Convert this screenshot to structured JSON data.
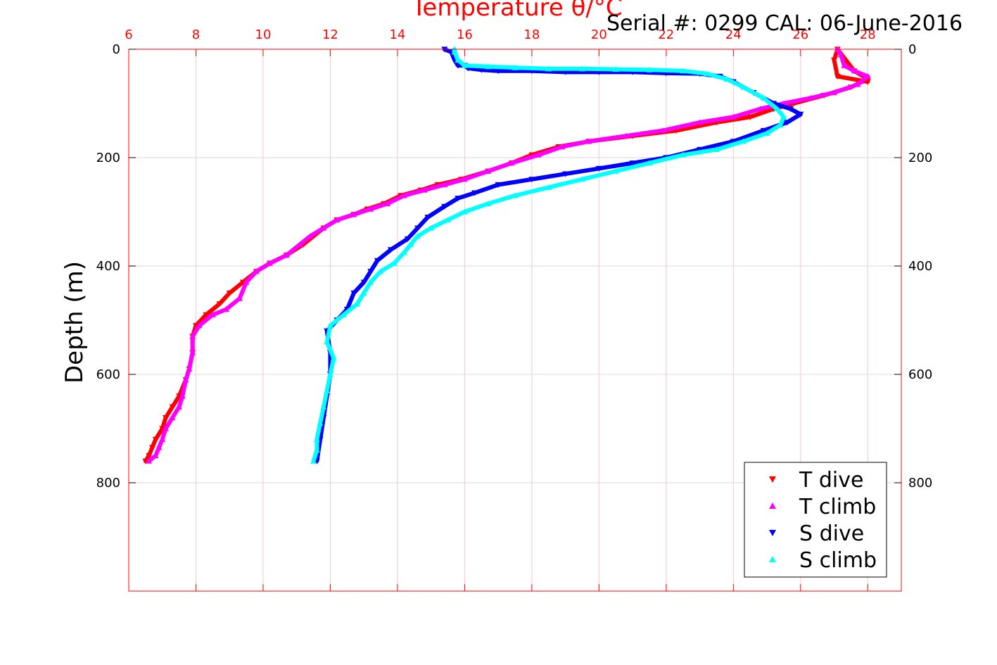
{
  "chart_data": {
    "type": "scatter",
    "title": "Temperature θ/°C",
    "annotation": "Serial #: 0299 CAL: 06-June-2016",
    "ylabel": "Depth (m)",
    "xlim": [
      6,
      29
    ],
    "ylim": [
      0,
      1000
    ],
    "y_reversed": true,
    "x_ticks": [
      "6",
      "8",
      "10",
      "12",
      "14",
      "16",
      "18",
      "20",
      "22",
      "24",
      "26",
      "28"
    ],
    "x_tick_values": [
      6,
      8,
      10,
      12,
      14,
      16,
      18,
      20,
      22,
      24,
      26,
      28
    ],
    "y_ticks": [
      "0",
      "200",
      "400",
      "600",
      "800"
    ],
    "y_tick_values": [
      0,
      200,
      400,
      600,
      800
    ],
    "grid": true,
    "legend_position": "bottom-right",
    "axis_color": "#ff0000",
    "series": [
      {
        "name": "T dive",
        "color": "#ff0000",
        "marker": "triangle-down",
        "x": [
          28.0,
          27.1,
          27.0,
          27.1,
          27.6,
          28.0,
          27.5,
          26.7,
          25.8,
          25.2,
          24.5,
          23.5,
          22.3,
          21.0,
          19.7,
          18.8,
          18.0,
          17.4,
          16.7,
          15.9,
          15.2,
          14.7,
          14.1,
          13.6,
          13.1,
          12.7,
          12.2,
          11.8,
          11.5,
          11.2,
          10.7,
          10.2,
          9.8,
          9.4,
          9.0,
          8.7,
          8.3,
          8.0,
          7.9,
          7.9,
          7.8,
          7.7,
          7.5,
          7.3,
          7.1,
          7.0,
          6.8,
          6.7,
          6.6,
          6.5
        ],
        "y": [
          60,
          50,
          20,
          0,
          40,
          55,
          70,
          85,
          100,
          110,
          125,
          135,
          150,
          160,
          170,
          180,
          195,
          210,
          225,
          240,
          250,
          260,
          270,
          285,
          295,
          305,
          315,
          330,
          345,
          360,
          380,
          395,
          410,
          430,
          450,
          470,
          490,
          510,
          530,
          560,
          590,
          610,
          640,
          660,
          680,
          700,
          720,
          735,
          750,
          760
        ]
      },
      {
        "name": "T climb",
        "color": "#ff00ff",
        "marker": "triangle-up",
        "x": [
          27.1,
          27.2,
          27.3,
          27.6,
          28.0,
          27.7,
          27.0,
          26.3,
          25.5,
          24.8,
          24.0,
          23.0,
          21.9,
          20.8,
          19.7,
          18.9,
          18.2,
          17.4,
          16.7,
          16.0,
          15.4,
          14.8,
          14.2,
          13.7,
          13.2,
          12.7,
          12.2,
          11.8,
          11.4,
          11.1,
          10.7,
          10.2,
          9.8,
          9.5,
          9.3,
          8.9,
          8.5,
          8.1,
          7.9,
          7.9,
          7.8,
          7.7,
          7.6,
          7.5,
          7.3,
          7.1,
          7.0,
          6.9,
          6.8,
          6.6
        ],
        "y": [
          0,
          10,
          30,
          40,
          50,
          65,
          80,
          90,
          100,
          110,
          125,
          135,
          150,
          160,
          170,
          180,
          195,
          210,
          225,
          240,
          250,
          260,
          270,
          285,
          295,
          305,
          315,
          330,
          345,
          360,
          380,
          395,
          410,
          430,
          460,
          480,
          490,
          510,
          530,
          560,
          590,
          610,
          640,
          660,
          680,
          700,
          720,
          735,
          750,
          760
        ]
      },
      {
        "name": "S dive",
        "color": "#0000ff",
        "marker": "triangle-down",
        "x": [
          15.4,
          15.6,
          15.7,
          15.8,
          16.0,
          16.1,
          16.5,
          17.0,
          18.0,
          19.0,
          20.0,
          21.0,
          22.0,
          23.0,
          23.6,
          24.0,
          24.6,
          25.2,
          25.7,
          26.0,
          25.6,
          24.9,
          24.0,
          23.0,
          22.0,
          21.0,
          20.0,
          19.0,
          18.0,
          17.0,
          16.3,
          15.8,
          15.4,
          14.9,
          14.6,
          14.3,
          13.8,
          13.4,
          13.2,
          13.0,
          12.7,
          12.5,
          12.2,
          11.9,
          12.0,
          12.0,
          11.9,
          11.8,
          11.7,
          11.6
        ],
        "y": [
          0,
          5,
          20,
          30,
          30,
          35,
          38,
          40,
          40,
          42,
          42,
          42,
          44,
          45,
          50,
          60,
          80,
          100,
          110,
          120,
          135,
          150,
          170,
          185,
          200,
          210,
          220,
          230,
          240,
          250,
          265,
          275,
          290,
          310,
          330,
          350,
          370,
          390,
          410,
          430,
          450,
          480,
          500,
          520,
          560,
          600,
          640,
          680,
          720,
          760
        ]
      },
      {
        "name": "S climb",
        "color": "#00ffff",
        "marker": "triangle-up",
        "x": [
          15.7,
          15.7,
          15.8,
          16.0,
          16.7,
          17.5,
          18.5,
          19.5,
          20.5,
          21.5,
          22.5,
          23.2,
          23.8,
          24.3,
          24.9,
          25.3,
          25.5,
          25.4,
          25.0,
          24.3,
          23.5,
          22.5,
          21.5,
          20.5,
          19.5,
          18.5,
          17.5,
          16.7,
          16.0,
          15.5,
          15.0,
          14.6,
          14.4,
          14.2,
          13.9,
          13.5,
          13.2,
          13.0,
          12.8,
          12.4,
          12.0,
          11.9,
          12.1,
          12.0,
          11.9,
          11.8,
          11.7,
          11.6,
          11.6,
          11.5
        ],
        "y": [
          0,
          5,
          20,
          30,
          32,
          34,
          36,
          36,
          37,
          38,
          40,
          45,
          55,
          70,
          90,
          110,
          125,
          140,
          155,
          170,
          185,
          195,
          210,
          225,
          240,
          255,
          270,
          285,
          300,
          315,
          330,
          345,
          360,
          375,
          395,
          410,
          430,
          450,
          470,
          490,
          510,
          540,
          570,
          600,
          630,
          660,
          690,
          720,
          740,
          760
        ]
      }
    ]
  }
}
